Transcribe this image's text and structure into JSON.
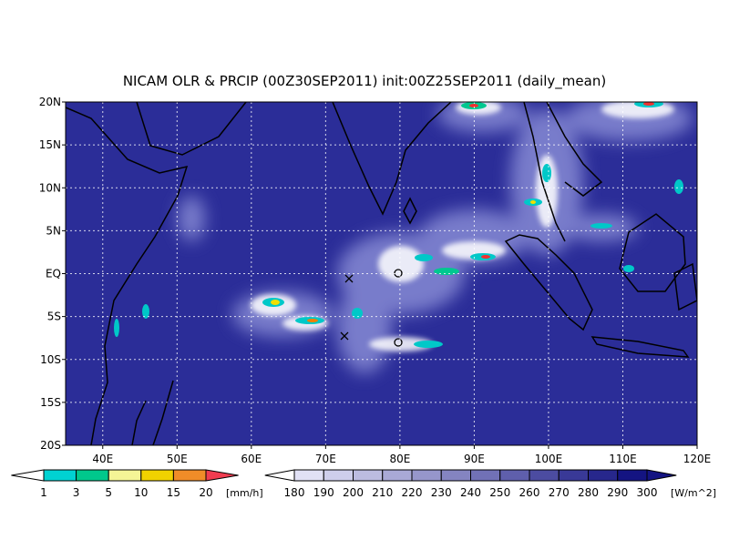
{
  "title": "NICAM OLR & PRCIP (00Z30SEP2011) init:00Z25SEP2011 (daily_mean)",
  "lat_labels": [
    "20N",
    "15N",
    "10N",
    "5N",
    "EQ",
    "5S",
    "10S",
    "15S",
    "20S"
  ],
  "lon_labels": [
    "40E",
    "50E",
    "60E",
    "70E",
    "80E",
    "90E",
    "100E",
    "110E",
    "120E"
  ],
  "precip_legend": {
    "labels": [
      "1",
      "3",
      "5",
      "10",
      "15",
      "20"
    ],
    "unit": "[mm/h]"
  },
  "olr_legend": {
    "labels": [
      "180",
      "190",
      "200",
      "210",
      "220",
      "230",
      "240",
      "250",
      "260",
      "270",
      "280",
      "290",
      "300"
    ],
    "unit": "[W/m^2]"
  }
}
